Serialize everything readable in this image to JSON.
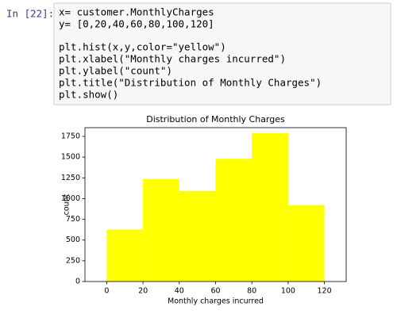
{
  "cell": {
    "prompt": "In [22]:",
    "blocks": [
      [
        "x= customer.MonthlyCharges",
        "y= [0,20,40,60,80,100,120]"
      ],
      [
        "plt.hist(x,y,color=\"yellow\")",
        "plt.xlabel(\"Monthly charges incurred\")",
        "plt.ylabel(\"count\")",
        "plt.title(\"Distribution of Monthly Charges\")",
        "plt.show()"
      ]
    ]
  },
  "chart_data": {
    "type": "histogram",
    "title": "Distribution of Monthly Charges",
    "x_label": "Monthly charges incurred",
    "y_label": "count",
    "bins": [
      0,
      20,
      40,
      60,
      80,
      100,
      120
    ],
    "values": [
      625,
      1235,
      1090,
      1480,
      1790,
      920
    ],
    "color": "yellow",
    "xlim": [
      -12,
      132
    ],
    "xticks": [
      0,
      20,
      40,
      60,
      80,
      100,
      120
    ],
    "ylim": [
      0,
      1855
    ],
    "yticks": [
      0,
      250,
      500,
      750,
      1000,
      1250,
      1500,
      1750
    ]
  }
}
